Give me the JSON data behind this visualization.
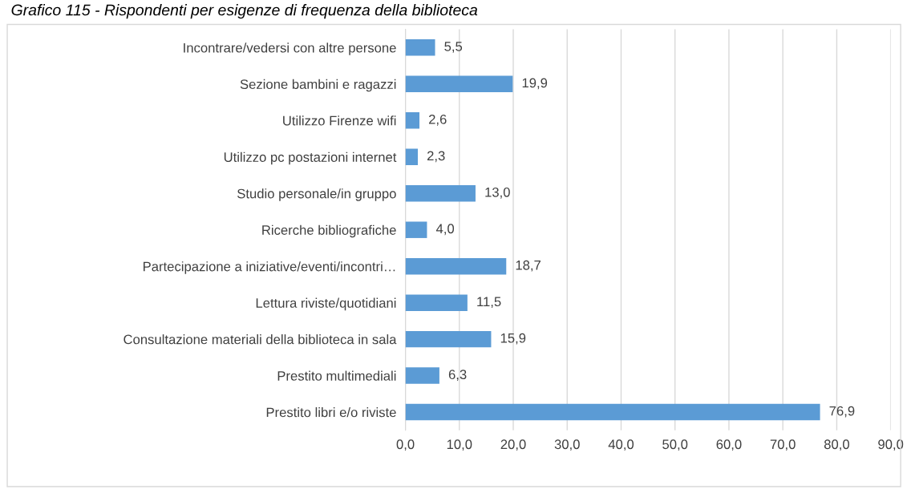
{
  "chart_data": {
    "type": "bar",
    "orientation": "horizontal",
    "title": "Grafico 115 - Rispondenti per esigenze di frequenza della biblioteca",
    "categories": [
      "Incontrare/vedersi con altre persone",
      "Sezione bambini e ragazzi",
      "Utilizzo Firenze wifi",
      "Utilizzo pc postazioni internet",
      "Studio personale/in gruppo",
      "Ricerche bibliografiche",
      "Partecipazione a iniziative/eventi/incontri…",
      "Lettura riviste/quotidiani",
      "Consultazione materiali della biblioteca in sala",
      "Prestito multimediali",
      "Prestito libri e/o riviste"
    ],
    "values": [
      5.5,
      19.9,
      2.6,
      2.3,
      13.0,
      4.0,
      18.7,
      11.5,
      15.9,
      6.3,
      76.9
    ],
    "value_labels": [
      "5,5",
      "19,9",
      "2,6",
      "2,3",
      "13,0",
      "4,0",
      "18,7",
      "11,5",
      "15,9",
      "6,3",
      "76,9"
    ],
    "color": "#5b9bd5",
    "xlim": [
      0,
      90
    ],
    "xticks": [
      {
        "value": 0,
        "label": "0,0"
      },
      {
        "value": 10,
        "label": "10,0"
      },
      {
        "value": 20,
        "label": "20,0"
      },
      {
        "value": 30,
        "label": "30,0"
      },
      {
        "value": 40,
        "label": "40,0"
      },
      {
        "value": 50,
        "label": "50,0"
      },
      {
        "value": 60,
        "label": "60,0"
      },
      {
        "value": 70,
        "label": "70,0"
      },
      {
        "value": 80,
        "label": "80,0"
      },
      {
        "value": 90,
        "label": "90,0"
      }
    ],
    "grid": "x",
    "legend": false
  }
}
